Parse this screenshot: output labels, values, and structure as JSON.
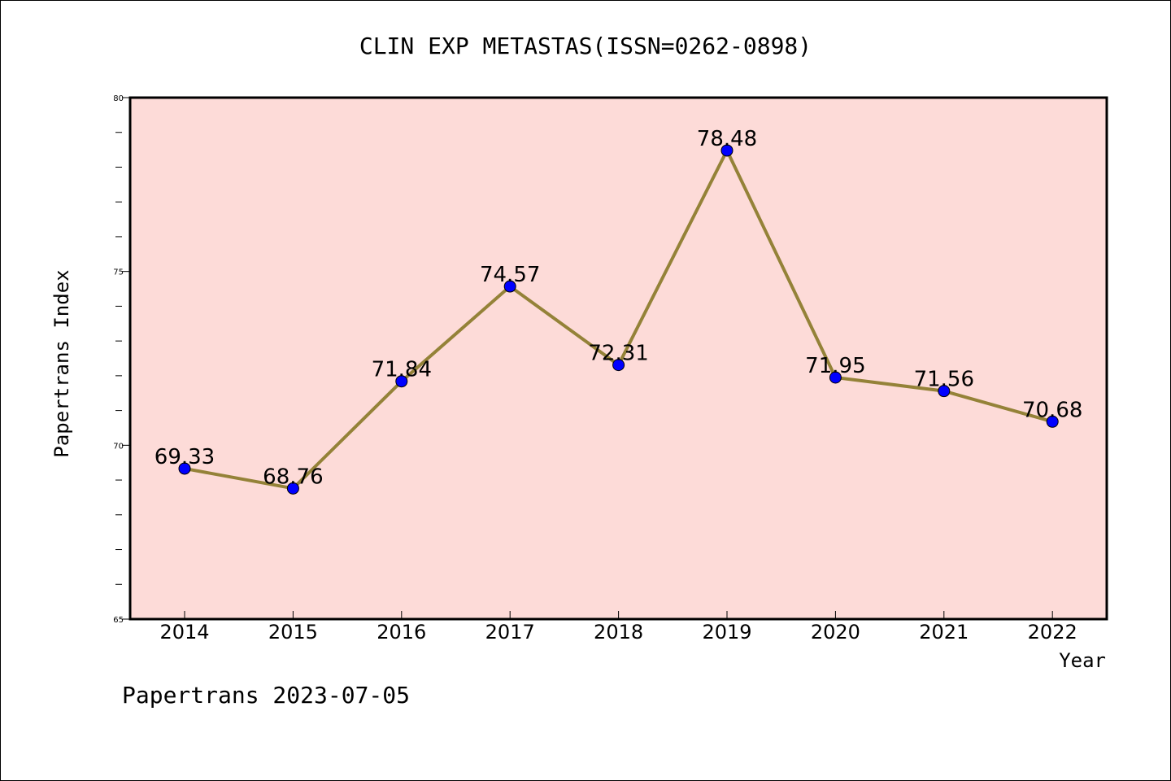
{
  "chart_data": {
    "type": "line",
    "title": "CLIN EXP METASTAS(ISSN=0262-0898)",
    "xlabel": "Year",
    "ylabel": "Papertrans Index",
    "categories": [
      "2014",
      "2015",
      "2016",
      "2017",
      "2018",
      "2019",
      "2020",
      "2021",
      "2022"
    ],
    "values": [
      69.33,
      68.76,
      71.84,
      74.57,
      72.31,
      78.48,
      71.95,
      71.56,
      70.68
    ],
    "data_labels": [
      "69.33",
      "68.76",
      "71.84",
      "74.57",
      "72.31",
      "78.48",
      "71.95",
      "71.56",
      "70.68"
    ],
    "ylim": [
      65,
      80
    ],
    "yticks": [
      "65",
      "70",
      "75",
      "80"
    ],
    "grid": false
  },
  "footer": "Papertrans 2023-07-05",
  "colors": {
    "plot_background": "#fddbd8",
    "line": "#948238",
    "marker": "#0000ff"
  }
}
